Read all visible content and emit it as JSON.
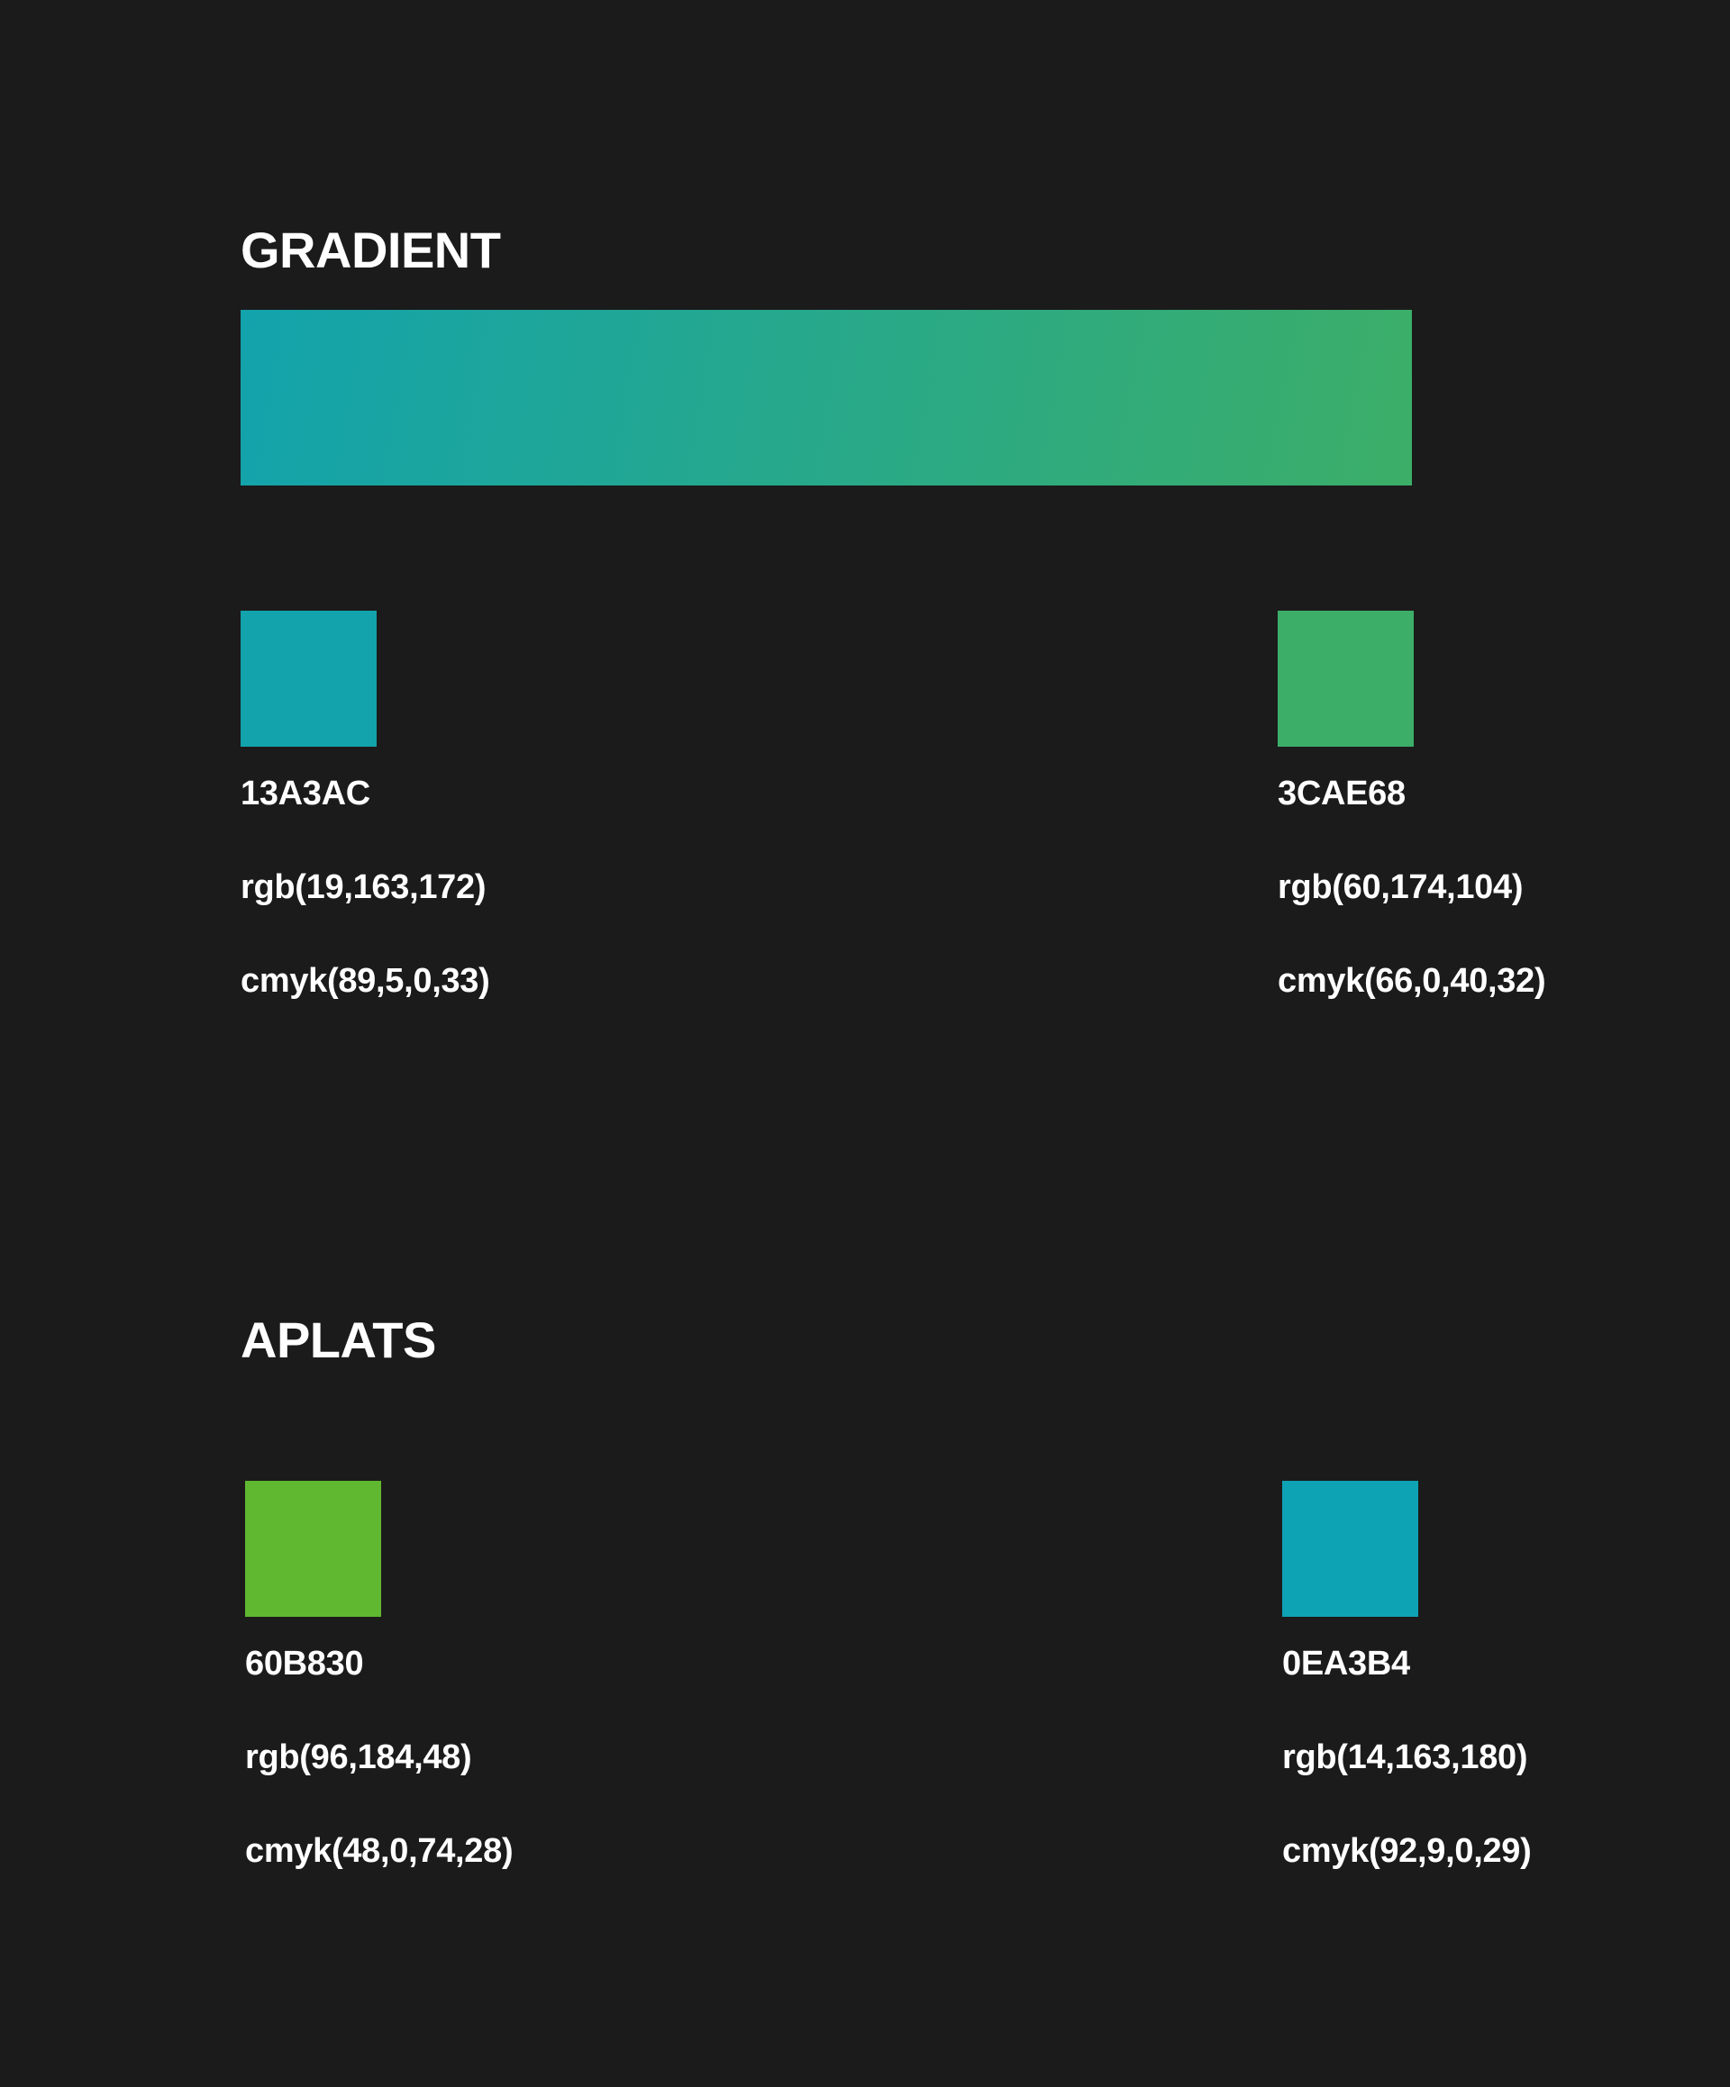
{
  "gradient": {
    "title": "GRADIENT",
    "start_color": "#13A3AC",
    "end_color": "#3CAE68",
    "swatches": [
      {
        "hex": "13A3AC",
        "rgb": "rgb(19,163,172)",
        "cmyk": "cmyk(89,5,0,33)",
        "color": "#13A3AC"
      },
      {
        "hex": "3CAE68",
        "rgb": "rgb(60,174,104)",
        "cmyk": "cmyk(66,0,40,32)",
        "color": "#3CAE68"
      }
    ]
  },
  "aplats": {
    "title": "APLATS",
    "swatches": [
      {
        "hex": "60B830",
        "rgb": "rgb(96,184,48)",
        "cmyk": "cmyk(48,0,74,28)",
        "color": "#60B830"
      },
      {
        "hex": "0EA3B4",
        "rgb": "rgb(14,163,180)",
        "cmyk": "cmyk(92,9,0,29)",
        "color": "#0EA3B4"
      }
    ]
  }
}
